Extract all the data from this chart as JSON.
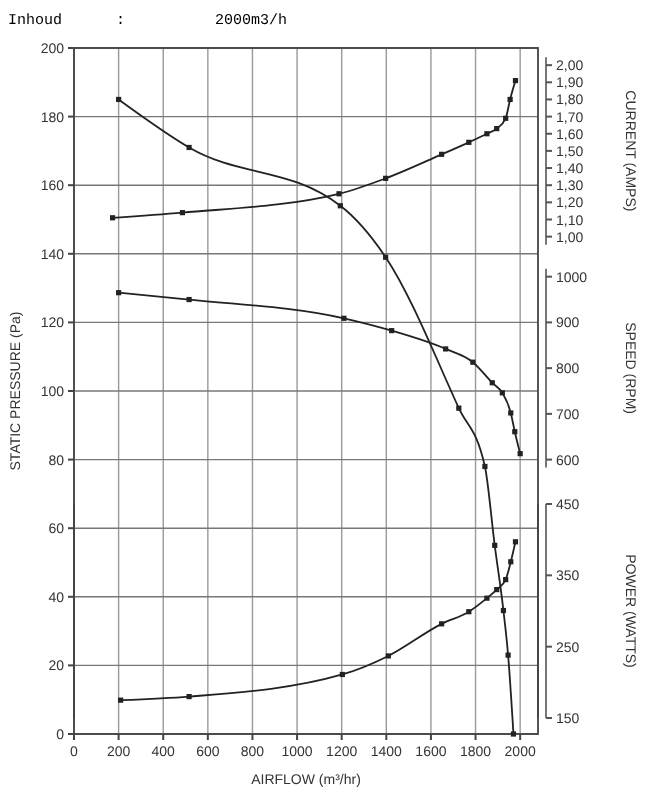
{
  "chart_data": [
    {
      "type": "line",
      "title": "Inhoud      :          2000m3/h",
      "xlabel": "AIRFLOW (m³/hr)",
      "ylabel": "STATIC PRESSURE (Pa)",
      "y2label": "CURRENT (AMPS)",
      "y3label": "SPEED (RPM)",
      "xlim": [
        0,
        2080
      ],
      "xticks": [
        0,
        200,
        400,
        600,
        800,
        1000,
        1200,
        1400,
        1600,
        1800,
        2000
      ],
      "ylim": [
        0,
        200
      ],
      "yticks": [
        0,
        20,
        40,
        60,
        80,
        100,
        120,
        140,
        160,
        180,
        200
      ],
      "y2lim": [
        -1.9,
        2.1
      ],
      "y2ticks": [
        {
          "value": 1,
          "label": "1,00"
        },
        {
          "value": 1.1,
          "label": "1,10"
        },
        {
          "value": 1.2,
          "label": "1,20"
        },
        {
          "value": 1.3,
          "label": "1,30"
        },
        {
          "value": 1.4,
          "label": "1,40"
        },
        {
          "value": 1.5,
          "label": "1,50"
        },
        {
          "value": 1.6,
          "label": "1,60"
        },
        {
          "value": 1.7,
          "label": "1,70"
        },
        {
          "value": 1.8,
          "label": "1,80"
        },
        {
          "value": 1.9,
          "label": "1,90"
        },
        {
          "value": 2,
          "label": "2,00"
        }
      ],
      "y3lim": [
        0,
        1500
      ],
      "y3ticks": [
        600,
        700,
        800,
        900,
        1000
      ],
      "grid": true,
      "marker": "square",
      "line_style": "solid",
      "series": [
        {
          "x": [
            200,
            516,
            1194,
            1397,
            1725,
            1842,
            1886,
            1925,
            1946,
            1970
          ],
          "values": [
            185,
            171,
            154,
            139,
            95,
            78,
            55,
            36,
            23,
            0
          ],
          "color": "#222222"
        },
        {
          "axis": "y2",
          "x": [
            173,
            486,
            1188,
            1397,
            1648,
            1770,
            1851,
            1895,
            1935,
            1955,
            1979
          ],
          "values": [
            1.11,
            1.14,
            1.25,
            1.34,
            1.48,
            1.55,
            1.6,
            1.63,
            1.69,
            1.8,
            1.91
          ],
          "color": "#222222"
        },
        {
          "axis": "y3",
          "x": [
            200,
            516,
            1210,
            1424,
            1666,
            1788,
            1875,
            1920,
            1958,
            1976,
            2000
          ],
          "values": [
            965,
            950,
            909,
            882,
            842,
            813,
            768,
            746,
            702,
            661,
            613
          ],
          "color": "#222222"
        }
      ]
    },
    {
      "type": "line",
      "ylabel": "POWER (WATTS)",
      "xlim": [
        0,
        2080
      ],
      "ylim": [
        150,
        450
      ],
      "yticks": [
        150,
        250,
        350,
        450
      ],
      "tick_labels": "y",
      "marker": "square",
      "line_style": "solid",
      "series": [
        {
          "x": [
            209,
            516,
            1203,
            1409,
            1648,
            1770,
            1851,
            1895,
            1935,
            1958,
            1979
          ],
          "values": [
            175,
            180,
            211,
            237,
            282,
            299,
            318,
            330,
            344,
            369,
            397
          ],
          "color": "#222222"
        }
      ]
    }
  ]
}
